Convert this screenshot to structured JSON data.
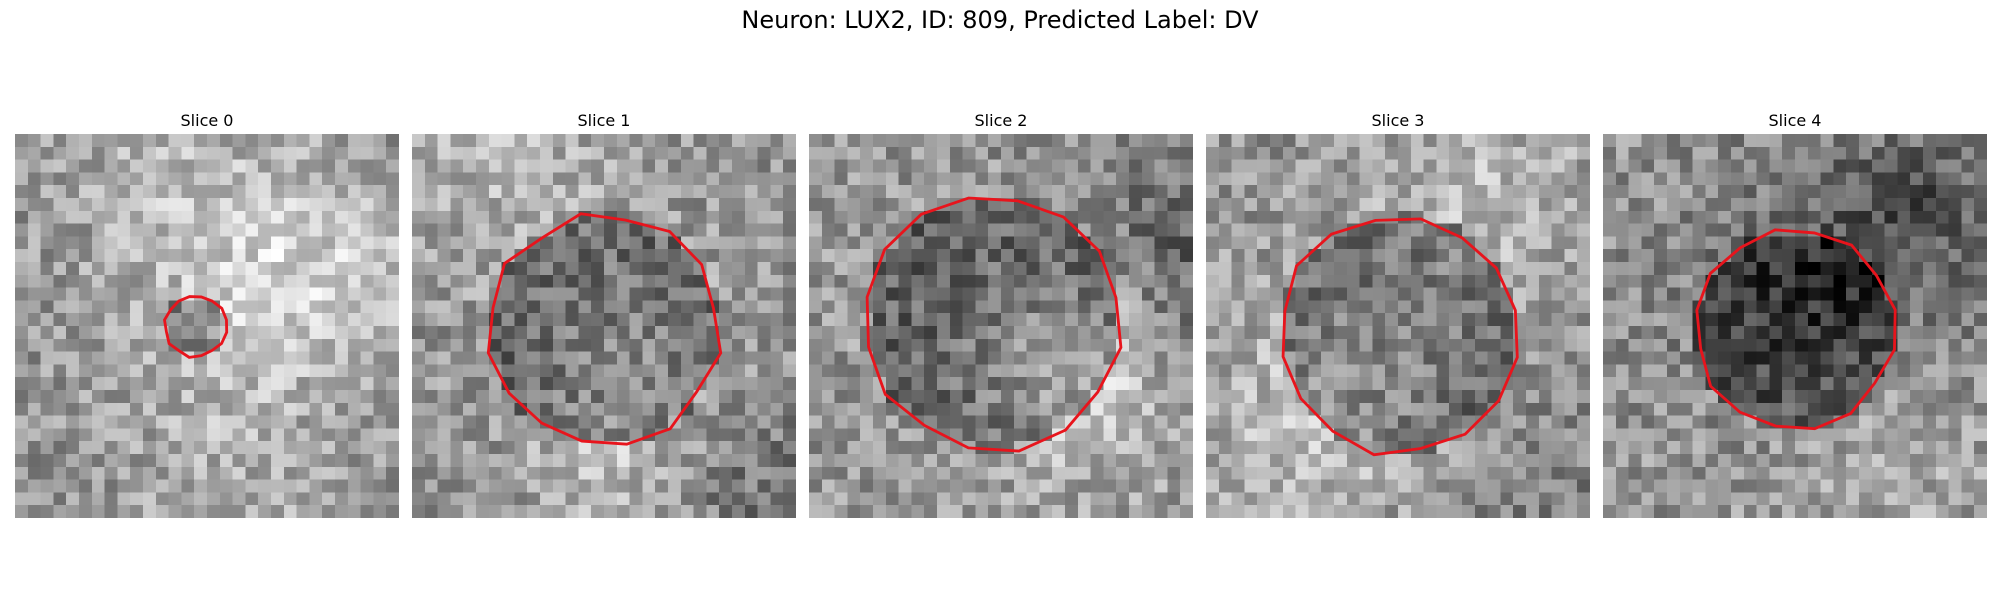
{
  "figure": {
    "title": "Neuron: LUX2, ID: 809, Predicted Label: DV",
    "contour_color": "#e8141c",
    "image_colormap": "gray",
    "slices": [
      {
        "title": "Slice 0",
        "mask_radius": 0.08,
        "center": [
          0.47,
          0.5
        ]
      },
      {
        "title": "Slice 1",
        "mask_radius": 0.3,
        "center": [
          0.5,
          0.51
        ]
      },
      {
        "title": "Slice 2",
        "mask_radius": 0.33,
        "center": [
          0.48,
          0.49
        ]
      },
      {
        "title": "Slice 3",
        "mask_radius": 0.31,
        "center": [
          0.5,
          0.52
        ]
      },
      {
        "title": "Slice 4",
        "mask_radius": 0.26,
        "center": [
          0.5,
          0.51
        ]
      }
    ]
  }
}
